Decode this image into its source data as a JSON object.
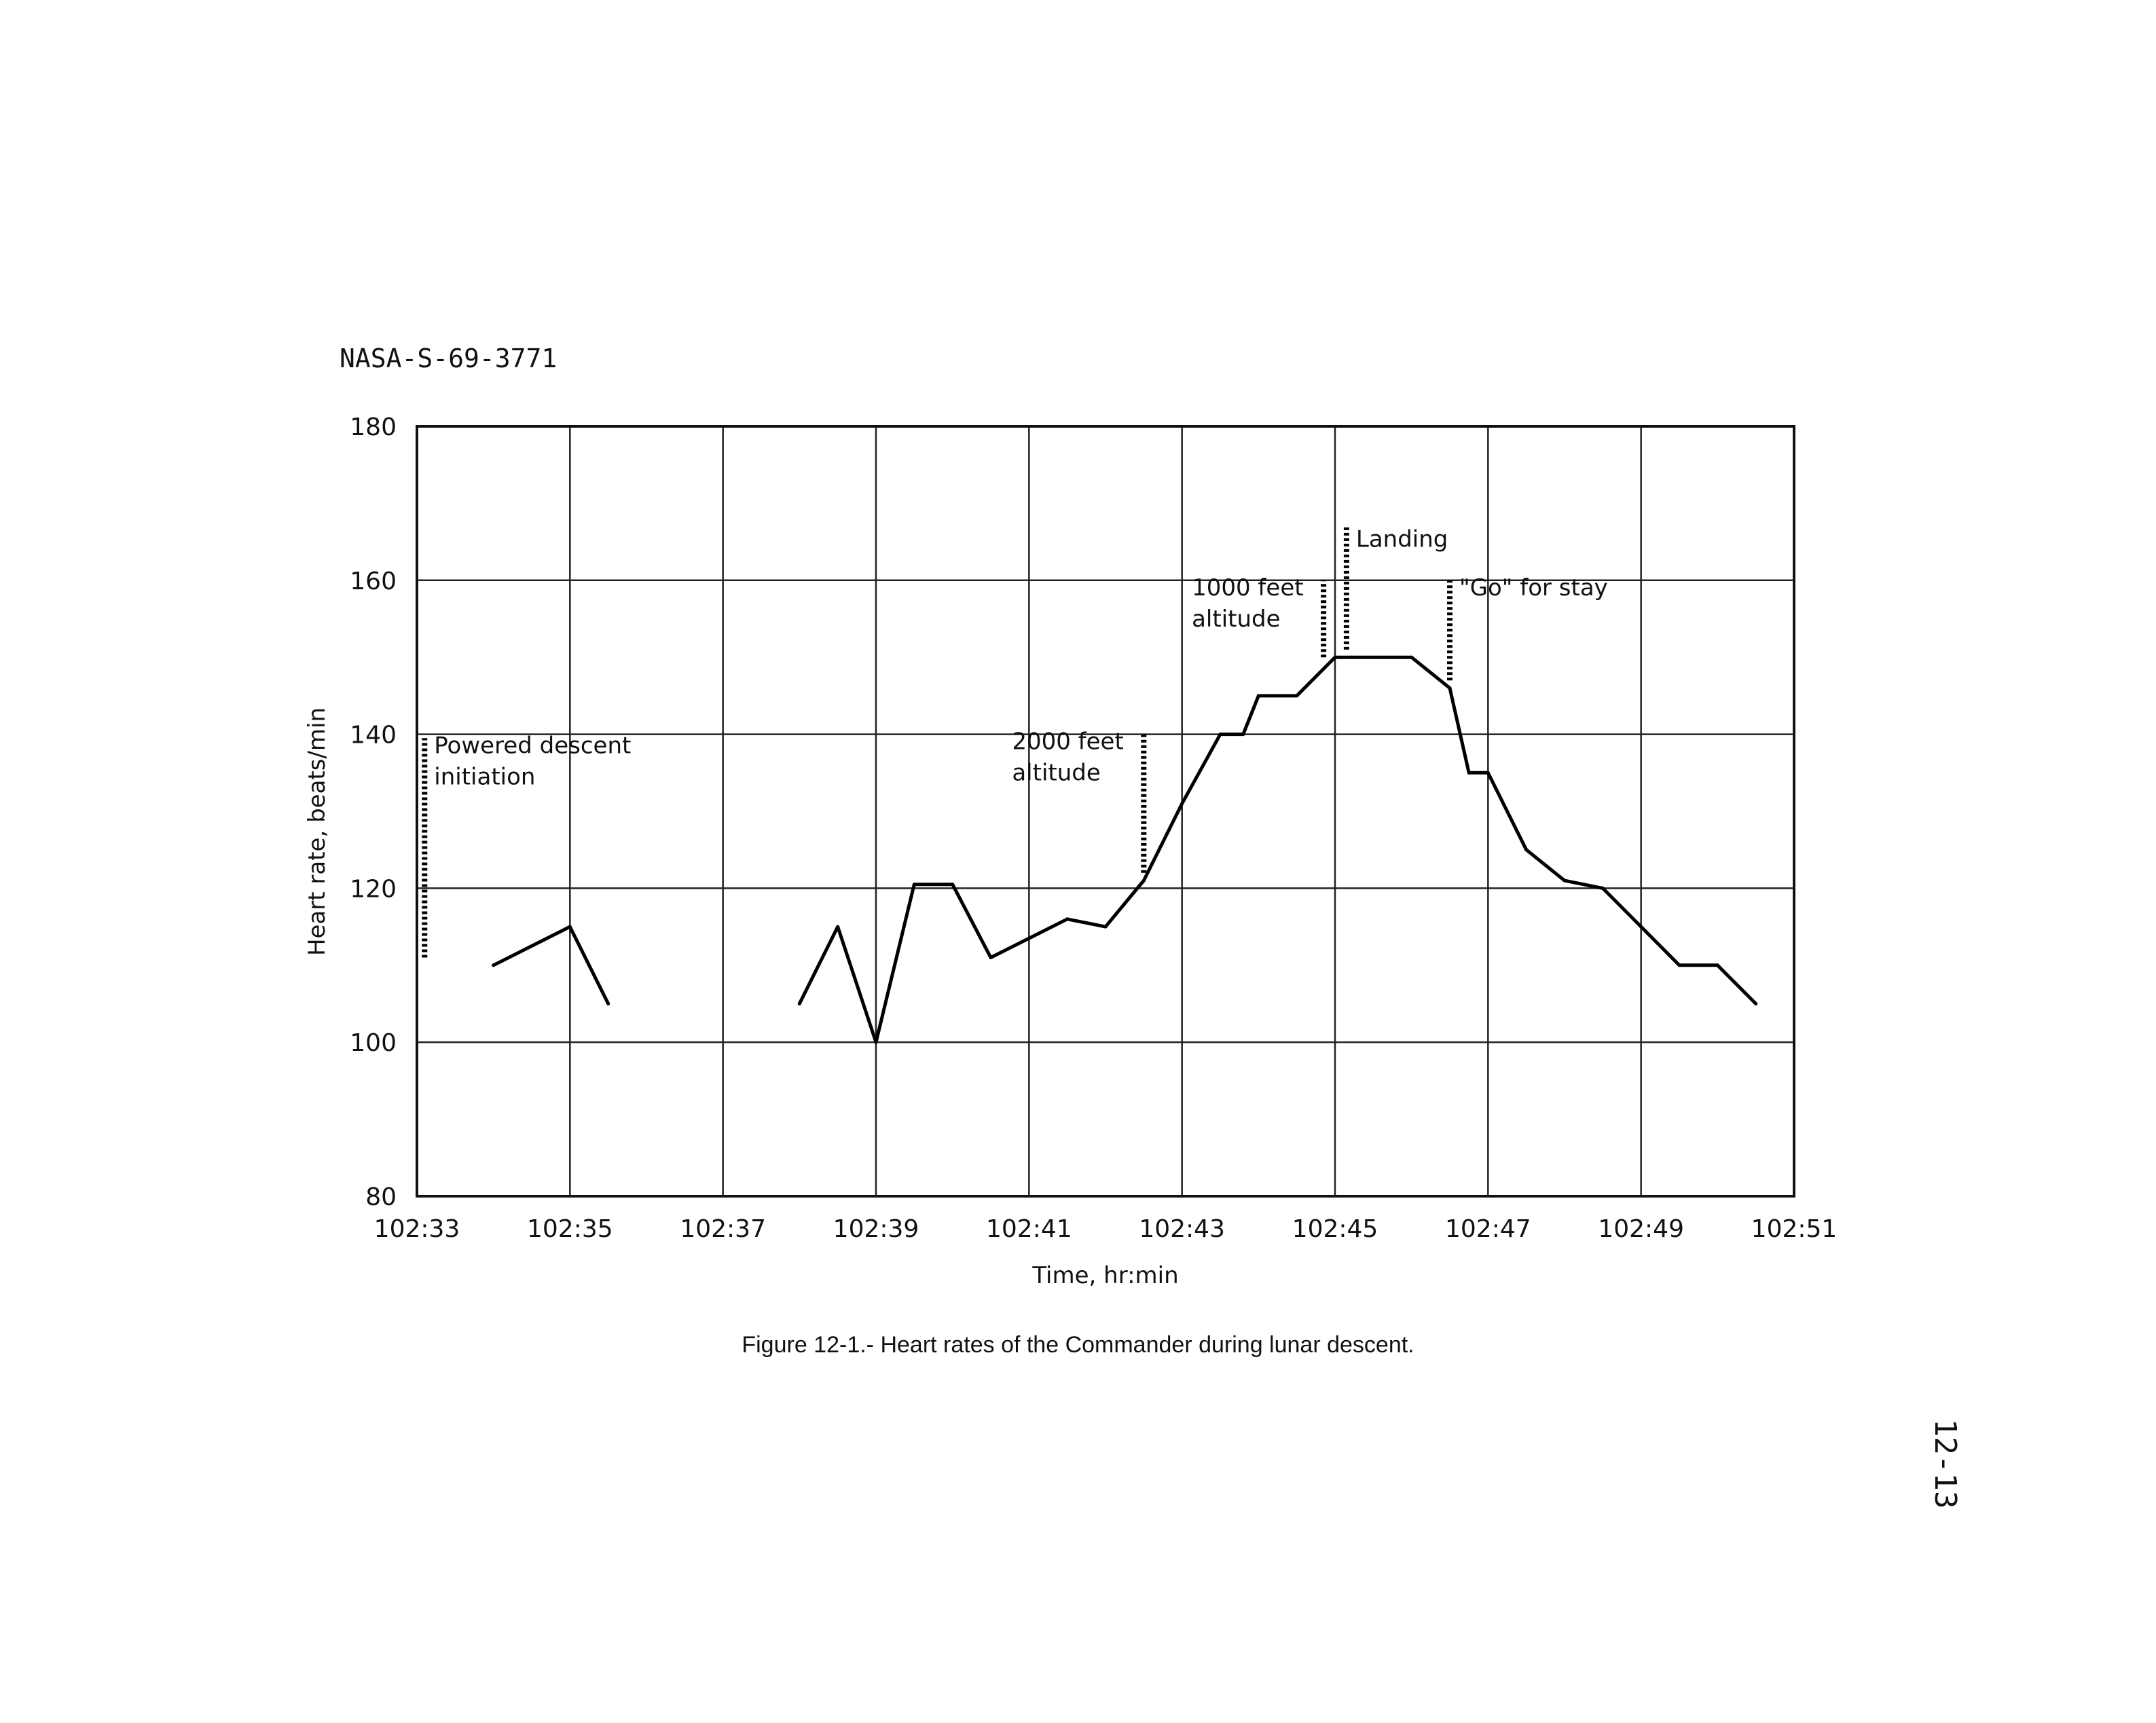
{
  "document": {
    "id": "NASA-S-69-3771",
    "page_number": "12-13",
    "caption": "Figure 12-1.- Heart rates of the Commander during lunar descent."
  },
  "chart_data": {
    "type": "line",
    "title": "",
    "xlabel": "Time, hr:min",
    "ylabel": "Heart rate, beats/min",
    "x_unit": "minutes past 102:33",
    "xlim": [
      "102:33",
      "102:51"
    ],
    "ylim": [
      80,
      180
    ],
    "x_ticks": [
      "102:33",
      "102:35",
      "102:37",
      "102:39",
      "102:41",
      "102:43",
      "102:45",
      "102:47",
      "102:49",
      "102:51"
    ],
    "y_ticks": [
      180,
      160,
      140,
      120,
      100,
      80
    ],
    "grid": true,
    "series": [
      {
        "name": "",
        "segments": [
          [
            {
              "x": "102:34",
              "y": 110
            },
            {
              "x": "102:35",
              "y": 115
            },
            {
              "x": "102:35.5",
              "y": 105
            }
          ],
          [
            {
              "x": "102:38",
              "y": 105
            },
            {
              "x": "102:38.5",
              "y": 115
            },
            {
              "x": "102:39",
              "y": 100
            },
            {
              "x": "102:39.5",
              "y": 120.5
            },
            {
              "x": "102:40",
              "y": 120.5
            },
            {
              "x": "102:40.5",
              "y": 111
            },
            {
              "x": "102:41.5",
              "y": 116
            },
            {
              "x": "102:42",
              "y": 115
            },
            {
              "x": "102:42.5",
              "y": 121
            },
            {
              "x": "102:43",
              "y": 131
            },
            {
              "x": "102:43.5",
              "y": 140
            },
            {
              "x": "102:43.8",
              "y": 140
            },
            {
              "x": "102:44",
              "y": 145
            },
            {
              "x": "102:44.5",
              "y": 145
            },
            {
              "x": "102:45",
              "y": 150
            },
            {
              "x": "102:46",
              "y": 150
            },
            {
              "x": "102:46.5",
              "y": 146
            },
            {
              "x": "102:46.75",
              "y": 135
            },
            {
              "x": "102:47",
              "y": 135
            },
            {
              "x": "102:47.5",
              "y": 125
            },
            {
              "x": "102:48",
              "y": 121
            },
            {
              "x": "102:48.5",
              "y": 120
            },
            {
              "x": "102:49",
              "y": 115
            },
            {
              "x": "102:49.5",
              "y": 110
            },
            {
              "x": "102:50",
              "y": 110
            },
            {
              "x": "102:50.5",
              "y": 105
            }
          ]
        ]
      }
    ],
    "annotations": [
      {
        "lines": [
          "Powered descent",
          "initiation"
        ],
        "x": "102:33.1",
        "y_from": 111,
        "y_to": 139.5
      },
      {
        "lines": [
          "2000 feet",
          "altitude"
        ],
        "x": "102:42.5",
        "y_from": 122,
        "y_to": 140
      },
      {
        "lines": [
          "1000 feet",
          "altitude"
        ],
        "x": "102:44.85",
        "y_from": 150,
        "y_to": 160
      },
      {
        "lines": [
          "Landing"
        ],
        "x": "102:45.15",
        "y_from": 151,
        "y_to": 167
      },
      {
        "lines": [
          "\"Go\" for stay"
        ],
        "x": "102:46.5",
        "y_from": 147,
        "y_to": 160
      }
    ]
  }
}
